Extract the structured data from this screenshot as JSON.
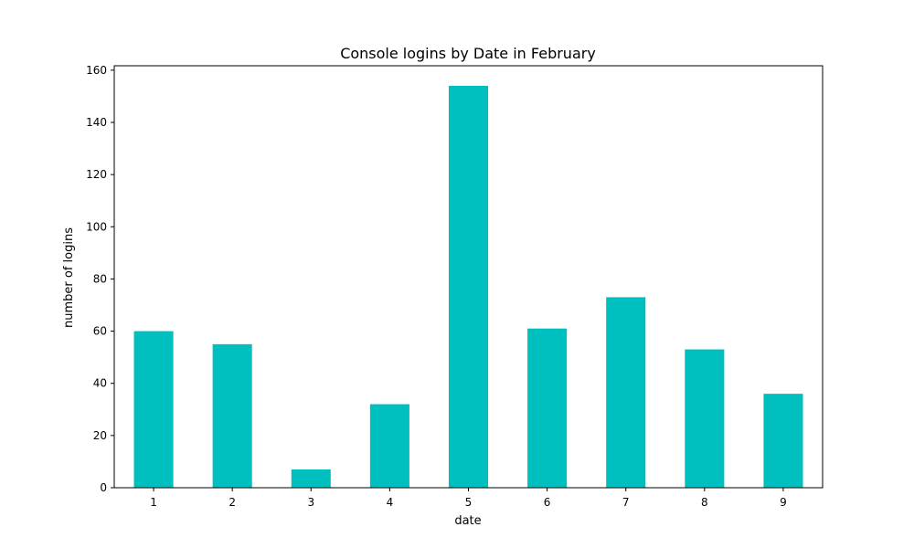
{
  "chart_data": {
    "type": "bar",
    "title": "Console logins by Date in February",
    "xlabel": "date",
    "ylabel": "number of logins",
    "categories": [
      "1",
      "2",
      "3",
      "4",
      "5",
      "6",
      "7",
      "8",
      "9"
    ],
    "values": [
      60,
      55,
      7,
      32,
      154,
      61,
      73,
      53,
      36
    ],
    "ylim": [
      0,
      161.7
    ],
    "yticks": [
      0,
      20,
      40,
      60,
      80,
      100,
      120,
      140,
      160
    ],
    "grid": false,
    "legend": "none",
    "colors": {
      "bar": "#00bfbf",
      "axis": "#000000",
      "background": "#ffffff"
    }
  }
}
